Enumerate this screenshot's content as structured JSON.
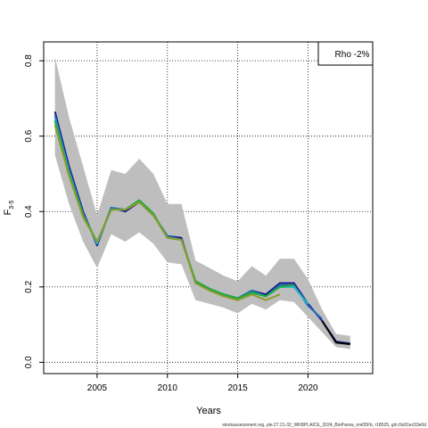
{
  "chart_data": {
    "type": "line",
    "xlabel": "Years",
    "ylabel_main": "F",
    "ylabel_sub": "3-5",
    "xlim": [
      2001.2,
      2024.6
    ],
    "ylim": [
      -0.03,
      0.85
    ],
    "x_ticks": [
      2005,
      2010,
      2015,
      2020
    ],
    "y_ticks": [
      0.0,
      0.2,
      0.4,
      0.6,
      0.8
    ],
    "x_tick_labels": [
      "2005",
      "2010",
      "2015",
      "2020"
    ],
    "y_tick_labels": [
      "0.0",
      "0.2",
      "0.4",
      "0.6",
      "0.8"
    ],
    "grid": true,
    "legend_text": "Rho -2%",
    "legend_position": "top-right",
    "footer": "stockassessment.org, ple.27.21-32_WKBPLAICE_2024_BioParsw_nm05Fb, r18525, git:c9c81ec53e0d",
    "band_color": "#bebebe",
    "confidence_band": {
      "x": [
        2002,
        2003,
        2004,
        2005,
        2006,
        2007,
        2008,
        2009,
        2010,
        2011,
        2012,
        2013,
        2014,
        2015,
        2016,
        2017,
        2018,
        2019,
        2020,
        2021,
        2022,
        2023
      ],
      "upper": [
        0.81,
        0.65,
        0.52,
        0.39,
        0.51,
        0.5,
        0.54,
        0.5,
        0.42,
        0.42,
        0.27,
        0.25,
        0.23,
        0.215,
        0.255,
        0.23,
        0.275,
        0.275,
        0.22,
        0.14,
        0.075,
        0.07
      ],
      "lower": [
        0.55,
        0.42,
        0.32,
        0.25,
        0.34,
        0.32,
        0.345,
        0.315,
        0.265,
        0.26,
        0.165,
        0.155,
        0.145,
        0.13,
        0.155,
        0.14,
        0.165,
        0.16,
        0.12,
        0.08,
        0.04,
        0.035
      ]
    },
    "series": [
      {
        "color": "#1a1a8c",
        "x": [
          2002,
          2003,
          2004,
          2005,
          2006,
          2007,
          2008,
          2009,
          2010,
          2011,
          2012,
          2013,
          2014,
          2015,
          2016,
          2017,
          2018,
          2019,
          2020,
          2021,
          2022,
          2023
        ],
        "values": [
          0.665,
          0.52,
          0.4,
          0.31,
          0.41,
          0.4,
          0.425,
          0.39,
          0.335,
          0.33,
          0.21,
          0.195,
          0.18,
          0.17,
          0.19,
          0.18,
          0.21,
          0.21,
          0.155,
          0.11,
          0.055,
          0.05
        ]
      },
      {
        "color": "#000000",
        "x": [
          2021,
          2022,
          2023
        ],
        "values": [
          0.11,
          0.052,
          0.048
        ]
      },
      {
        "color": "#1f6fb4",
        "x": [
          2002,
          2003,
          2004,
          2005,
          2006,
          2007,
          2008,
          2009,
          2010,
          2011,
          2012,
          2013,
          2014,
          2015,
          2016,
          2017,
          2018,
          2019,
          2020,
          2021
        ],
        "values": [
          0.655,
          0.51,
          0.395,
          0.315,
          0.41,
          0.405,
          0.425,
          0.39,
          0.335,
          0.325,
          0.215,
          0.195,
          0.18,
          0.17,
          0.19,
          0.175,
          0.205,
          0.205,
          0.15,
          0.115
        ]
      },
      {
        "color": "#22b5c4",
        "x": [
          2002,
          2003,
          2004,
          2005,
          2006,
          2007,
          2008,
          2009,
          2010,
          2011,
          2012,
          2013,
          2014,
          2015,
          2016,
          2017,
          2018,
          2019,
          2020
        ],
        "values": [
          0.645,
          0.505,
          0.39,
          0.315,
          0.405,
          0.405,
          0.425,
          0.39,
          0.33,
          0.325,
          0.215,
          0.195,
          0.18,
          0.17,
          0.185,
          0.175,
          0.2,
          0.2,
          0.155
        ]
      },
      {
        "color": "#1faa3c",
        "x": [
          2002,
          2003,
          2004,
          2005,
          2006,
          2007,
          2008,
          2009,
          2010,
          2011,
          2012,
          2013,
          2014,
          2015,
          2016,
          2017,
          2018,
          2019
        ],
        "values": [
          0.64,
          0.5,
          0.39,
          0.32,
          0.405,
          0.405,
          0.43,
          0.395,
          0.33,
          0.325,
          0.215,
          0.195,
          0.18,
          0.17,
          0.185,
          0.175,
          0.2,
          0.205
        ]
      },
      {
        "color": "#8c9c2a",
        "x": [
          2002,
          2003,
          2004,
          2005,
          2006,
          2007,
          2008,
          2009,
          2010,
          2011,
          2012,
          2013,
          2014,
          2015,
          2016,
          2017,
          2018
        ],
        "values": [
          0.63,
          0.495,
          0.385,
          0.32,
          0.405,
          0.405,
          0.425,
          0.39,
          0.33,
          0.325,
          0.21,
          0.19,
          0.175,
          0.165,
          0.18,
          0.165,
          0.18
        ]
      }
    ]
  }
}
